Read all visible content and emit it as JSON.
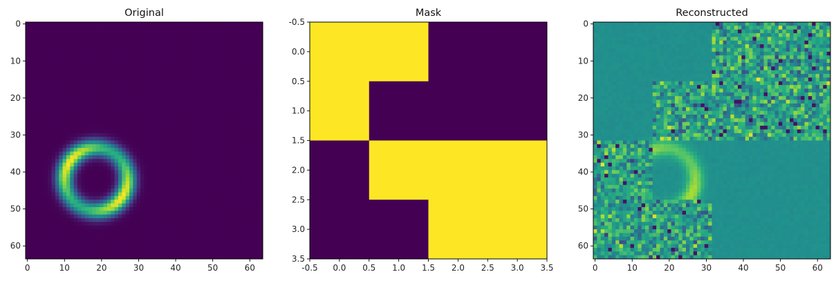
{
  "figure": {
    "background": "#ffffff",
    "colormap": "viridis"
  },
  "chart_data": [
    {
      "type": "heatmap",
      "title": "Original",
      "grid": false,
      "xticks": [
        0,
        10,
        20,
        30,
        40,
        50,
        60
      ],
      "yticks": [
        0,
        10,
        20,
        30,
        40,
        50,
        60
      ],
      "xlim": [
        -0.5,
        63.5
      ],
      "ylim": [
        63.5,
        -0.5
      ],
      "shape": [
        64,
        64
      ],
      "content": "ring",
      "ring": {
        "center_x": 18.5,
        "center_y": 42,
        "radius": 8.5,
        "width": 1.6,
        "peak_value": 1.0
      }
    },
    {
      "type": "heatmap",
      "title": "Mask",
      "grid": false,
      "xticks": [
        -0.5,
        0.0,
        0.5,
        1.0,
        1.5,
        2.0,
        2.5,
        3.0,
        3.5
      ],
      "yticks": [
        -0.5,
        0.0,
        0.5,
        1.0,
        1.5,
        2.0,
        2.5,
        3.0,
        3.5
      ],
      "xlim": [
        -0.5,
        3.5
      ],
      "ylim": [
        3.5,
        -0.5
      ],
      "shape": [
        4,
        4
      ],
      "values": [
        [
          1,
          1,
          0,
          0
        ],
        [
          1,
          0,
          0,
          0
        ],
        [
          0,
          1,
          1,
          1
        ],
        [
          0,
          0,
          1,
          1
        ]
      ]
    },
    {
      "type": "heatmap",
      "title": "Reconstructed",
      "grid": false,
      "xticks": [
        0,
        10,
        20,
        30,
        40,
        50,
        60
      ],
      "yticks": [
        0,
        10,
        20,
        30,
        40,
        50,
        60
      ],
      "xlim": [
        -0.5,
        63.5
      ],
      "ylim": [
        63.5,
        -0.5
      ],
      "shape": [
        64,
        64
      ],
      "content": "ring with noise in masked blocks",
      "base_value": 0.5,
      "ring": {
        "center_x": 18.5,
        "center_y": 42,
        "radius": 8.5,
        "width": 1.6,
        "peak_value": 0.85
      },
      "noisy_blocks": [
        {
          "x0": 32,
          "x1": 64,
          "y0": 0,
          "y1": 16
        },
        {
          "x0": 16,
          "x1": 64,
          "y0": 16,
          "y1": 32
        },
        {
          "x0": 0,
          "x1": 16,
          "y0": 32,
          "y1": 48
        },
        {
          "x0": 0,
          "x1": 32,
          "y0": 48,
          "y1": 64
        }
      ]
    }
  ]
}
